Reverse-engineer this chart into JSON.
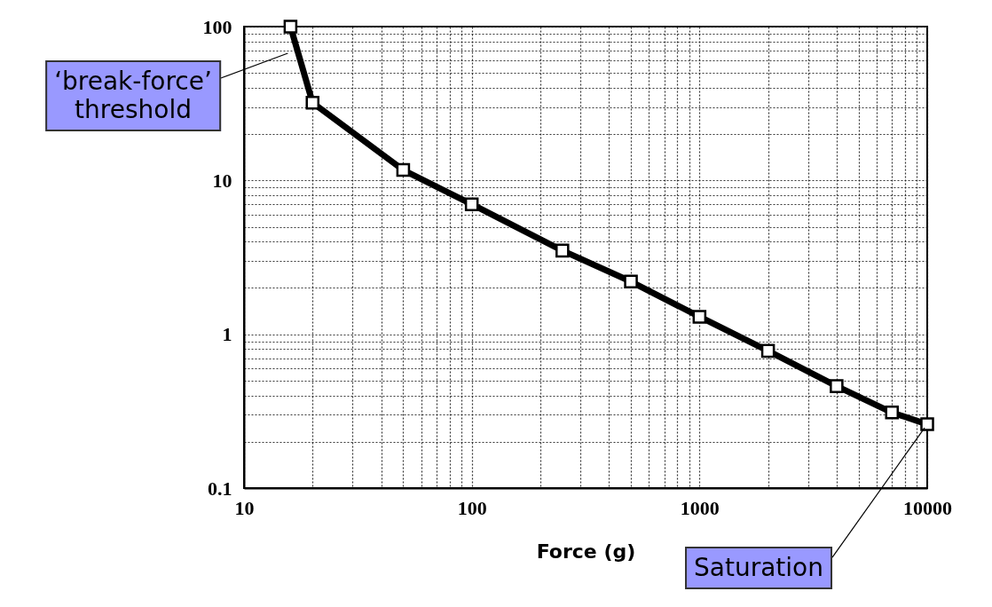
{
  "chart_data": {
    "type": "line",
    "xlabel": "Force (g)",
    "log": "xy",
    "grid": true,
    "marker": "square",
    "line_style": "solid",
    "x": [
      16,
      20,
      50,
      100,
      250,
      500,
      1000,
      2000,
      4000,
      7000,
      10000
    ],
    "series": [
      {
        "color": "#000000",
        "values": [
          100,
          32,
          11.7,
          7.0,
          3.5,
          2.2,
          1.3,
          0.78,
          0.46,
          0.31,
          0.26
        ]
      }
    ],
    "xlim": [
      10,
      10000
    ],
    "ylim": [
      0.1,
      100
    ],
    "xticks": [
      10,
      {
        "value": 20,
        "label": null
      },
      {
        "value": 30,
        "label": null
      },
      {
        "value": 40,
        "label": null
      },
      {
        "value": 50,
        "label": null
      },
      {
        "value": 60,
        "label": null
      },
      {
        "value": 70,
        "label": null
      },
      {
        "value": 80,
        "label": null
      },
      {
        "value": 90,
        "label": null
      },
      100,
      {
        "value": 200,
        "label": null
      },
      {
        "value": 300,
        "label": null
      },
      {
        "value": 400,
        "label": null
      },
      {
        "value": 500,
        "label": null
      },
      {
        "value": 600,
        "label": null
      },
      {
        "value": 700,
        "label": null
      },
      {
        "value": 800,
        "label": null
      },
      {
        "value": 900,
        "label": null
      },
      1000,
      {
        "value": 2000,
        "label": null
      },
      {
        "value": 3000,
        "label": null
      },
      {
        "value": 4000,
        "label": null
      },
      {
        "value": 5000,
        "label": null
      },
      {
        "value": 6000,
        "label": null
      },
      {
        "value": 7000,
        "label": null
      },
      {
        "value": 8000,
        "label": null
      },
      {
        "value": 9000,
        "label": null
      },
      10000
    ],
    "yticks": [
      0.1,
      {
        "value": 0.2,
        "label": null
      },
      {
        "value": 0.3,
        "label": null
      },
      {
        "value": 0.4,
        "label": null
      },
      {
        "value": 0.5,
        "label": null
      },
      {
        "value": 0.6,
        "label": null
      },
      {
        "value": 0.7,
        "label": null
      },
      {
        "value": 0.8,
        "label": null
      },
      {
        "value": 0.9,
        "label": null
      },
      1,
      {
        "value": 2,
        "label": null
      },
      {
        "value": 3,
        "label": null
      },
      {
        "value": 4,
        "label": null
      },
      {
        "value": 5,
        "label": null
      },
      {
        "value": 6,
        "label": null
      },
      {
        "value": 7,
        "label": null
      },
      {
        "value": 8,
        "label": null
      },
      {
        "value": 9,
        "label": null
      },
      10,
      {
        "value": 20,
        "label": null
      },
      {
        "value": 30,
        "label": null
      },
      {
        "value": 40,
        "label": null
      },
      {
        "value": 50,
        "label": null
      },
      {
        "value": 60,
        "label": null
      },
      {
        "value": 70,
        "label": null
      },
      {
        "value": 80,
        "label": null
      },
      {
        "value": 90,
        "label": null
      },
      100
    ],
    "annotations": [
      "‘break-force’\nthreshold",
      {
        "text": "Saturation",
        "x": 10000,
        "y": 0.26
      }
    ]
  }
}
